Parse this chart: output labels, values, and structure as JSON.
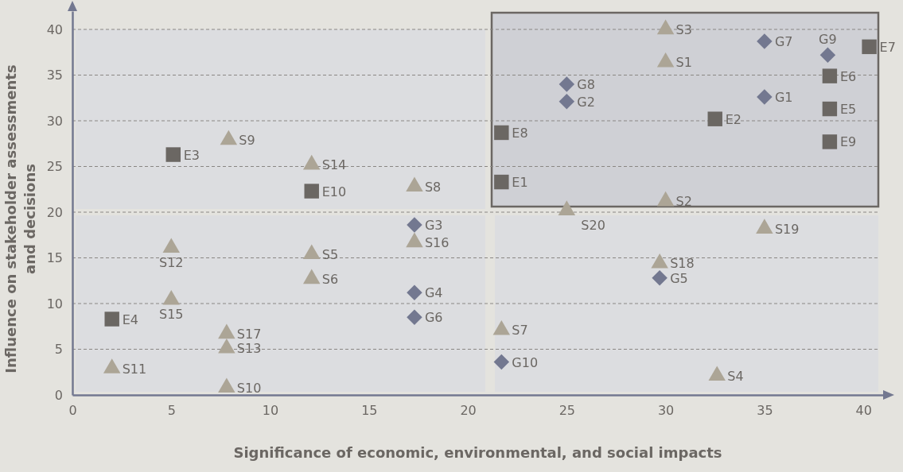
{
  "chart_data": {
    "type": "scatter",
    "xlabel": "Significance of economic, environmental, and social impacts",
    "ylabel": "Influence on stakeholder assessments and decisions",
    "xlim": [
      0,
      41
    ],
    "ylim": [
      0,
      42
    ],
    "xticks": [
      0,
      5,
      10,
      15,
      20,
      25,
      30,
      35,
      40
    ],
    "yticks": [
      0,
      5,
      10,
      15,
      20,
      25,
      30,
      35,
      40
    ],
    "grid": "y",
    "series": [
      {
        "color": "#6b6763",
        "marker": "square",
        "x": [
          21.7,
          32.5,
          5.1,
          2.0,
          38.3,
          38.3,
          40.3,
          21.7,
          38.3,
          12.1
        ],
        "values": [
          23.3,
          30.2,
          26.3,
          8.3,
          31.3,
          34.9,
          38.1,
          28.7,
          27.7,
          22.3
        ]
      },
      {
        "color": "#737890",
        "marker": "diamond",
        "x": [
          35,
          25,
          17.3,
          17.3,
          29.7,
          17.3,
          35,
          25,
          38.2,
          21.7
        ],
        "values": [
          32.6,
          32.1,
          18.6,
          11.2,
          12.8,
          8.5,
          38.7,
          34.0,
          37.2,
          3.6
        ]
      },
      {
        "color": "#aca596",
        "marker": "triangle",
        "x": [
          30,
          30,
          30,
          32.6,
          12.1,
          12.1,
          21.7,
          17.3,
          7.9,
          7.8,
          2.0,
          5,
          7.8,
          12.1,
          5,
          17.3,
          7.8,
          29.7,
          35,
          25
        ],
        "values": [
          36.4,
          21.2,
          40,
          2.1,
          15.4,
          12.7,
          7.1,
          22.8,
          27.9,
          0.8,
          2.9,
          16.1,
          5.1,
          25.2,
          10.4,
          16.7,
          6.7,
          14.4,
          18.2,
          20.2
        ]
      }
    ],
    "annotations": [
      {
        "text": "E1",
        "x": 21.7,
        "y": 23.3
      },
      {
        "text": "E2",
        "x": 32.5,
        "y": 30.2
      },
      {
        "text": "E3",
        "x": 5.1,
        "y": 26.3
      },
      {
        "text": "E4",
        "x": 2.0,
        "y": 8.3
      },
      {
        "text": "E5",
        "x": 38.3,
        "y": 31.3
      },
      {
        "text": "E6",
        "x": 38.3,
        "y": 34.9
      },
      {
        "text": "E7",
        "x": 40.3,
        "y": 38.1
      },
      {
        "text": "E8",
        "x": 21.7,
        "y": 28.7
      },
      {
        "text": "E9",
        "x": 38.3,
        "y": 27.7
      },
      {
        "text": "E10",
        "x": 12.1,
        "y": 22.3
      },
      {
        "text": "G1",
        "x": 35,
        "y": 32.6
      },
      {
        "text": "G2",
        "x": 25,
        "y": 32.1
      },
      {
        "text": "G3",
        "x": 17.3,
        "y": 18.6
      },
      {
        "text": "G4",
        "x": 17.3,
        "y": 11.2
      },
      {
        "text": "G5",
        "x": 29.7,
        "y": 12.8
      },
      {
        "text": "G6",
        "x": 17.3,
        "y": 8.5
      },
      {
        "text": "G7",
        "x": 35,
        "y": 38.7
      },
      {
        "text": "G8",
        "x": 25,
        "y": 34.0
      },
      {
        "text": "G9",
        "x": 38.2,
        "y": 37.2
      },
      {
        "text": "G10",
        "x": 21.7,
        "y": 3.6
      },
      {
        "text": "S1",
        "x": 30,
        "y": 36.4
      },
      {
        "text": "S2",
        "x": 30,
        "y": 21.2
      },
      {
        "text": "S3",
        "x": 30,
        "y": 40
      },
      {
        "text": "S4",
        "x": 32.6,
        "y": 2.1
      },
      {
        "text": "S5",
        "x": 12.1,
        "y": 15.4
      },
      {
        "text": "S6",
        "x": 12.1,
        "y": 12.7
      },
      {
        "text": "S7",
        "x": 21.7,
        "y": 7.1
      },
      {
        "text": "S8",
        "x": 17.3,
        "y": 22.8
      },
      {
        "text": "S9",
        "x": 7.9,
        "y": 27.9
      },
      {
        "text": "S10",
        "x": 7.8,
        "y": 0.8
      },
      {
        "text": "S11",
        "x": 2.0,
        "y": 2.9
      },
      {
        "text": "S12",
        "x": 5,
        "y": 16.1
      },
      {
        "text": "S13",
        "x": 7.8,
        "y": 5.1
      },
      {
        "text": "S14",
        "x": 12.1,
        "y": 25.2
      },
      {
        "text": "S15",
        "x": 5,
        "y": 10.4
      },
      {
        "text": "S16",
        "x": 17.3,
        "y": 16.7
      },
      {
        "text": "S17",
        "x": 7.8,
        "y": 6.7
      },
      {
        "text": "S18",
        "x": 29.7,
        "y": 14.4
      },
      {
        "text": "S19",
        "x": 35,
        "y": 18.2
      },
      {
        "text": "S20",
        "x": 25,
        "y": 20.2
      }
    ]
  }
}
